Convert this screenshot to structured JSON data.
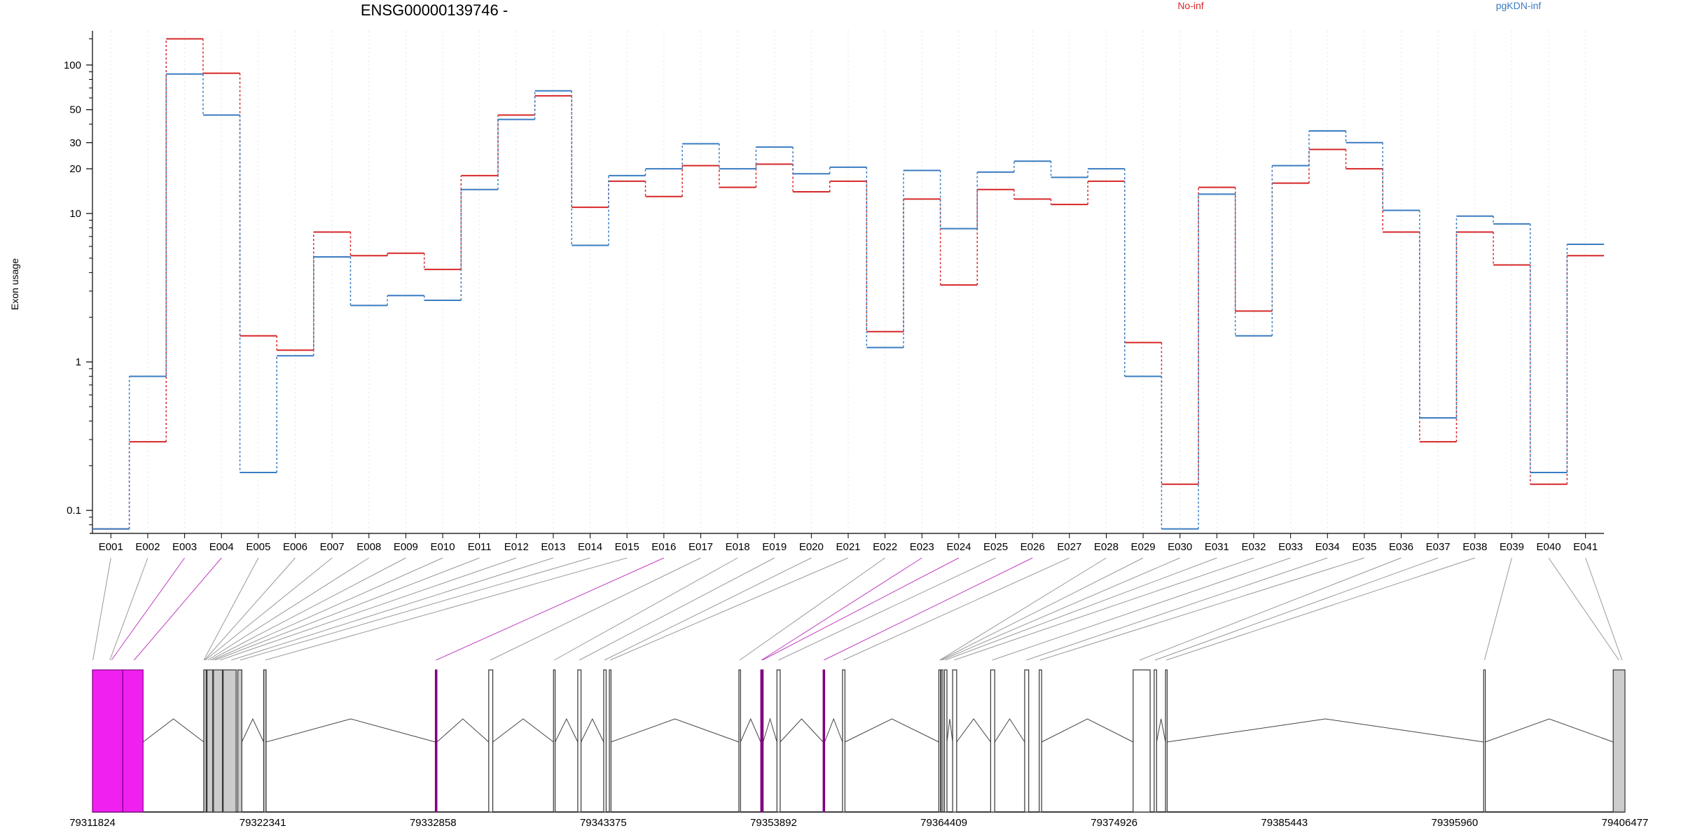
{
  "chart_data": {
    "type": "line",
    "title": "ENSG00000139746 -",
    "ylabel": "Exon usage",
    "yscale": "log",
    "ylim": [
      0.07,
      170
    ],
    "yticks": [
      {
        "v": 100,
        "label": "100"
      },
      {
        "v": 50,
        "label": "50"
      },
      {
        "v": 30,
        "label": "30"
      },
      {
        "v": 20,
        "label": "20"
      },
      {
        "v": 10,
        "label": "10"
      },
      {
        "v": 1,
        "label": "1"
      },
      {
        "v": 0.1,
        "label": "0.1"
      }
    ],
    "grid": "vertical dotted at each exon",
    "legend_placement": "top-right",
    "categories": [
      "E001",
      "E002",
      "E003",
      "E004",
      "E005",
      "E006",
      "E007",
      "E008",
      "E009",
      "E010",
      "E011",
      "E012",
      "E013",
      "E014",
      "E015",
      "E016",
      "E017",
      "E018",
      "E019",
      "E020",
      "E021",
      "E022",
      "E023",
      "E024",
      "E025",
      "E026",
      "E027",
      "E028",
      "E029",
      "E030",
      "E031",
      "E032",
      "E033",
      "E034",
      "E035",
      "E036",
      "E037",
      "E038",
      "E039",
      "E040",
      "E041"
    ],
    "series": [
      {
        "name": "No-inf",
        "color": "#d62728",
        "values": [
          0.075,
          0.29,
          150,
          88,
          1.5,
          1.2,
          7.5,
          5.2,
          5.4,
          4.2,
          18,
          46,
          62,
          11,
          16.5,
          13,
          21,
          15,
          21.5,
          14,
          16.5,
          1.6,
          12.5,
          3.3,
          14.5,
          12.5,
          11.5,
          16.5,
          1.35,
          0.15,
          15,
          2.2,
          16,
          27,
          20,
          7.5,
          0.29,
          7.5,
          4.5,
          0.15,
          5.2
        ]
      },
      {
        "name": "pgKDN-inf",
        "color": "#3a7cc2",
        "values": [
          0.075,
          0.8,
          87,
          46,
          0.18,
          1.1,
          5.1,
          2.4,
          2.8,
          2.6,
          14.5,
          43,
          67,
          6.1,
          18,
          20,
          29.5,
          20,
          28,
          18.5,
          20.5,
          1.25,
          19.5,
          7.9,
          19,
          22.5,
          17.5,
          20,
          0.8,
          0.075,
          13.5,
          1.5,
          21,
          36,
          30,
          10.5,
          0.42,
          9.6,
          8.5,
          0.18,
          6.2
        ]
      }
    ],
    "gene_axis": {
      "tick_labels": [
        "79311824",
        "79322341",
        "79332858",
        "79343375",
        "79353892",
        "79364409",
        "79374926",
        "79385443",
        "79395960",
        "79406477"
      ],
      "start": 79311824,
      "end": 79406477
    },
    "exons": [
      {
        "s": 79311824,
        "e": 79313700,
        "fill": "#f020f0",
        "hl": true
      },
      {
        "s": 79313700,
        "e": 79314950,
        "fill": "#f020f0",
        "hl": true
      },
      {
        "s": 79318700,
        "e": 79318850,
        "fill": "#cccccc"
      },
      {
        "s": 79318900,
        "e": 79319250,
        "fill": "#cccccc"
      },
      {
        "s": 79319300,
        "e": 79319850,
        "fill": "#cccccc"
      },
      {
        "s": 79319900,
        "e": 79320700,
        "fill": "#cccccc"
      },
      {
        "s": 79320800,
        "e": 79321050,
        "fill": "#cccccc"
      },
      {
        "s": 79322400,
        "e": 79322550,
        "fill": "#cccccc"
      },
      {
        "s": 79333000,
        "e": 79333100,
        "fill": "#800080",
        "hl": true
      },
      {
        "s": 79336300,
        "e": 79336550,
        "fill": "#ffffff"
      },
      {
        "s": 79340300,
        "e": 79340400,
        "fill": "#ffffff"
      },
      {
        "s": 79341800,
        "e": 79342000,
        "fill": "#ffffff"
      },
      {
        "s": 79343400,
        "e": 79343550,
        "fill": "#ffffff"
      },
      {
        "s": 79343750,
        "e": 79343850,
        "fill": "#ffffff"
      },
      {
        "s": 79351750,
        "e": 79351850,
        "fill": "#ffffff"
      },
      {
        "s": 79353100,
        "e": 79353250,
        "fill": "#800080",
        "hl": true
      },
      {
        "s": 79354100,
        "e": 79354300,
        "fill": "#ffffff"
      },
      {
        "s": 79356950,
        "e": 79357050,
        "fill": "#800080",
        "hl": true
      },
      {
        "s": 79358150,
        "e": 79358300,
        "fill": "#ffffff"
      },
      {
        "s": 79364100,
        "e": 79364200,
        "fill": "#ffffff"
      },
      {
        "s": 79364250,
        "e": 79364350,
        "fill": "#ffffff"
      },
      {
        "s": 79364450,
        "e": 79364600,
        "fill": "#ffffff"
      },
      {
        "s": 79364950,
        "e": 79365200,
        "fill": "#ffffff"
      },
      {
        "s": 79367300,
        "e": 79367550,
        "fill": "#ffffff"
      },
      {
        "s": 79369400,
        "e": 79369650,
        "fill": "#ffffff"
      },
      {
        "s": 79370300,
        "e": 79370450,
        "fill": "#ffffff"
      },
      {
        "s": 79376100,
        "e": 79377150,
        "fill": "#ffffff"
      },
      {
        "s": 79377400,
        "e": 79377550,
        "fill": "#ffffff"
      },
      {
        "s": 79378100,
        "e": 79378200,
        "fill": "#ffffff"
      },
      {
        "s": 79397750,
        "e": 79397850,
        "fill": "#ffffff"
      },
      {
        "s": 79405750,
        "e": 79406477,
        "fill": "#cccccc"
      }
    ],
    "connectors": [
      {
        "e": "E001",
        "g": 79311850,
        "hl": false
      },
      {
        "e": "E002",
        "g": 79312900,
        "hl": false
      },
      {
        "e": "E003",
        "g": 79313000,
        "hl": true
      },
      {
        "e": "E004",
        "g": 79314400,
        "hl": true
      },
      {
        "e": "E005",
        "g": 79318700,
        "hl": false
      },
      {
        "e": "E006",
        "g": 79318750,
        "hl": false
      },
      {
        "e": "E007",
        "g": 79318800,
        "hl": false
      },
      {
        "e": "E008",
        "g": 79318950,
        "hl": false
      },
      {
        "e": "E009",
        "g": 79319100,
        "hl": false
      },
      {
        "e": "E010",
        "g": 79319250,
        "hl": false
      },
      {
        "e": "E011",
        "g": 79319400,
        "hl": false
      },
      {
        "e": "E012",
        "g": 79319700,
        "hl": false
      },
      {
        "e": "E013",
        "g": 79320400,
        "hl": false
      },
      {
        "e": "E014",
        "g": 79320950,
        "hl": false
      },
      {
        "e": "E015",
        "g": 79322500,
        "hl": false
      },
      {
        "e": "E016",
        "g": 79333050,
        "hl": true
      },
      {
        "e": "E017",
        "g": 79336400,
        "hl": false
      },
      {
        "e": "E018",
        "g": 79340350,
        "hl": false
      },
      {
        "e": "E019",
        "g": 79341900,
        "hl": false
      },
      {
        "e": "E020",
        "g": 79343450,
        "hl": false
      },
      {
        "e": "E021",
        "g": 79343800,
        "hl": false
      },
      {
        "e": "E022",
        "g": 79351800,
        "hl": false
      },
      {
        "e": "E023",
        "g": 79353150,
        "hl": true
      },
      {
        "e": "E024",
        "g": 79353200,
        "hl": true
      },
      {
        "e": "E025",
        "g": 79354200,
        "hl": false
      },
      {
        "e": "E026",
        "g": 79357000,
        "hl": true
      },
      {
        "e": "E027",
        "g": 79358200,
        "hl": false
      },
      {
        "e": "E028",
        "g": 79364150,
        "hl": false
      },
      {
        "e": "E029",
        "g": 79364200,
        "hl": false
      },
      {
        "e": "E030",
        "g": 79364300,
        "hl": false
      },
      {
        "e": "E031",
        "g": 79364500,
        "hl": false
      },
      {
        "e": "E032",
        "g": 79365050,
        "hl": false
      },
      {
        "e": "E033",
        "g": 79367400,
        "hl": false
      },
      {
        "e": "E034",
        "g": 79369500,
        "hl": false
      },
      {
        "e": "E035",
        "g": 79370350,
        "hl": false
      },
      {
        "e": "E036",
        "g": 79376500,
        "hl": false
      },
      {
        "e": "E037",
        "g": 79377450,
        "hl": false
      },
      {
        "e": "E038",
        "g": 79378150,
        "hl": false
      },
      {
        "e": "E039",
        "g": 79397800,
        "hl": false
      },
      {
        "e": "E040",
        "g": 79406100,
        "hl": false
      },
      {
        "e": "E041",
        "g": 79406300,
        "hl": false
      }
    ],
    "introns": [
      [
        79314950,
        79318700
      ],
      [
        79321050,
        79322400
      ],
      [
        79322550,
        79333000
      ],
      [
        79333100,
        79336300
      ],
      [
        79336550,
        79340300
      ],
      [
        79340400,
        79341800
      ],
      [
        79342000,
        79343400
      ],
      [
        79343850,
        79351750
      ],
      [
        79351850,
        79353100
      ],
      [
        79353250,
        79354100
      ],
      [
        79354300,
        79356950
      ],
      [
        79357050,
        79358150
      ],
      [
        79358300,
        79364100
      ],
      [
        79364600,
        79364950
      ],
      [
        79365200,
        79367300
      ],
      [
        79367550,
        79369400
      ],
      [
        79370450,
        79376100
      ],
      [
        79377550,
        79378100
      ],
      [
        79378200,
        79397750
      ],
      [
        79397850,
        79405750
      ]
    ]
  }
}
